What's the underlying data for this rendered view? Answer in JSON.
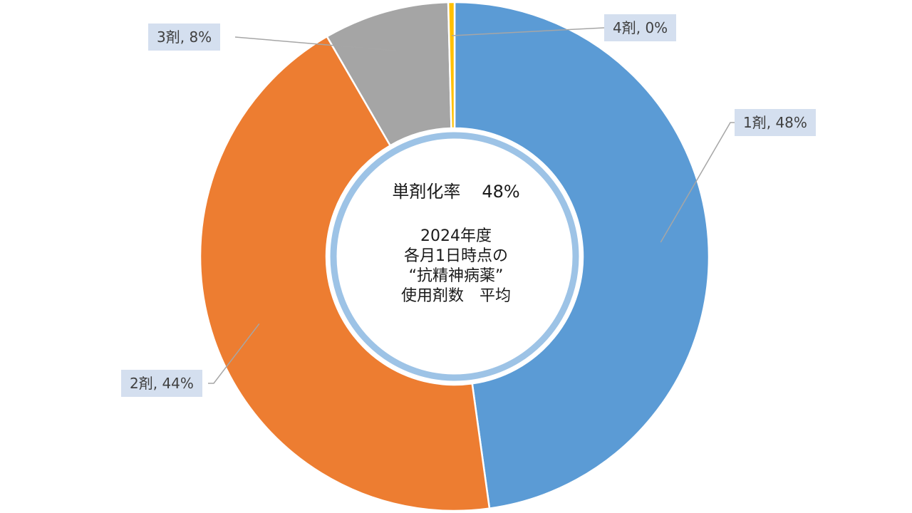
{
  "chart_data": {
    "type": "pie",
    "variant": "donut",
    "categories": [
      "1剤",
      "2剤",
      "3剤",
      "4剤"
    ],
    "values": [
      48,
      44,
      8,
      0.4
    ],
    "colors": [
      "#5b9bd5",
      "#ed7d31",
      "#a5a5a5",
      "#ffc000"
    ],
    "data_labels": [
      "1剤, 48%",
      "2剤, 44%",
      "3剤, 8%",
      "4剤, 0%"
    ],
    "center_headline": {
      "label": "単剤化率",
      "value": "48%"
    },
    "center_subtitle": [
      "2024年度",
      "各月1日時点の",
      "“抗精神病薬”",
      "使用剤数　平均"
    ]
  }
}
